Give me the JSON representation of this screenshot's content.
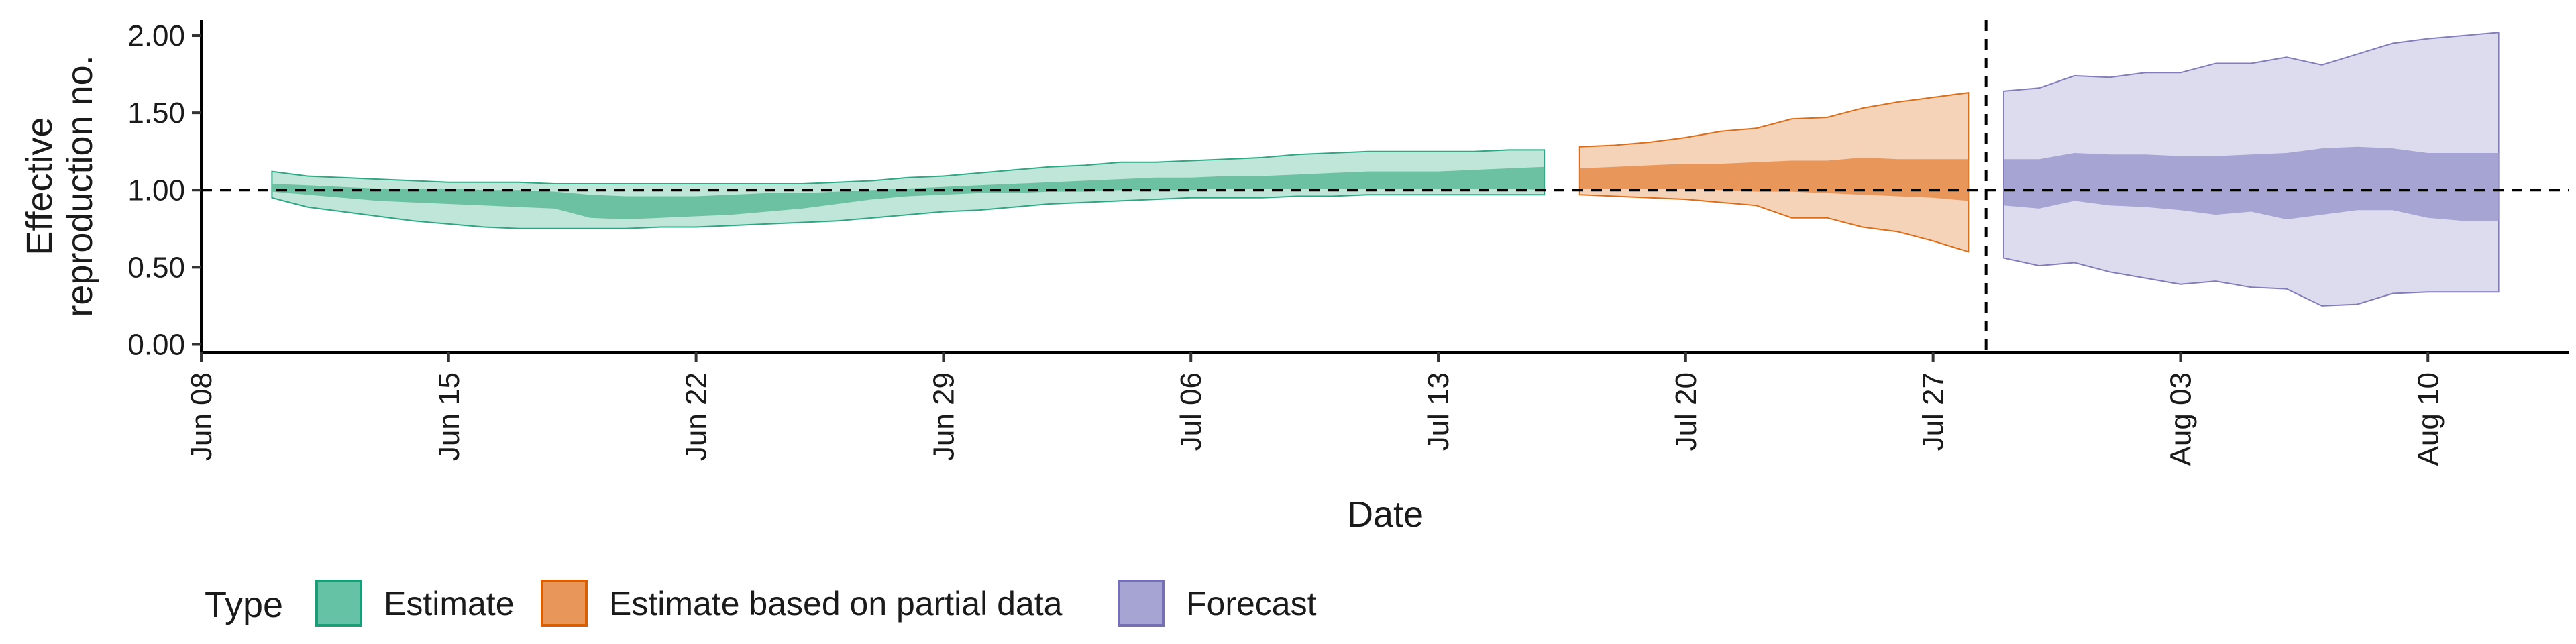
{
  "chart_data": {
    "type": "area",
    "xlabel": "Date",
    "ylabel_lines": [
      "Effective",
      "reproduction no."
    ],
    "ylim": [
      -0.05,
      2.1
    ],
    "xlim": [
      "2020-06-08",
      "2020-08-14"
    ],
    "y_ticks": [
      0.0,
      0.5,
      1.0,
      1.5,
      2.0
    ],
    "y_tick_labels": [
      "0.00",
      "0.50",
      "1.00",
      "1.50",
      "2.00"
    ],
    "x_ticks": [
      "2020-06-08",
      "2020-06-15",
      "2020-06-22",
      "2020-06-29",
      "2020-07-06",
      "2020-07-13",
      "2020-07-20",
      "2020-07-27",
      "2020-08-03",
      "2020-08-10"
    ],
    "x_tick_labels": [
      "Jun 08",
      "Jun 15",
      "Jun 22",
      "Jun 29",
      "Jul 06",
      "Jul 13",
      "Jul 20",
      "Jul 27",
      "Aug 03",
      "Aug 10"
    ],
    "hline_y": 1.0,
    "vline_x": "2020-07-28",
    "legend": {
      "title": "Type",
      "position": "bottom-left",
      "entries": [
        {
          "label": "Estimate",
          "fill": "#66c2a5",
          "stroke": "#1b9e77"
        },
        {
          "label": "Estimate based on partial data",
          "fill": "#e8965a",
          "stroke": "#d95f02"
        },
        {
          "label": "Forecast",
          "fill": "#a6a4d2",
          "stroke": "#7570b3"
        }
      ]
    },
    "series": [
      {
        "name": "Estimate",
        "color": "#1b9e77",
        "fill_outer": "#bfe6d8",
        "fill_inner": "#6cc1a2",
        "x": [
          "2020-06-10",
          "2020-06-11",
          "2020-06-12",
          "2020-06-13",
          "2020-06-14",
          "2020-06-15",
          "2020-06-16",
          "2020-06-17",
          "2020-06-18",
          "2020-06-19",
          "2020-06-20",
          "2020-06-21",
          "2020-06-22",
          "2020-06-23",
          "2020-06-24",
          "2020-06-25",
          "2020-06-26",
          "2020-06-27",
          "2020-06-28",
          "2020-06-29",
          "2020-06-30",
          "2020-07-01",
          "2020-07-02",
          "2020-07-03",
          "2020-07-04",
          "2020-07-05",
          "2020-07-06",
          "2020-07-07",
          "2020-07-08",
          "2020-07-09",
          "2020-07-10",
          "2020-07-11",
          "2020-07-12",
          "2020-07-13",
          "2020-07-14",
          "2020-07-15",
          "2020-07-16"
        ],
        "upper_90": [
          1.12,
          1.09,
          1.08,
          1.07,
          1.06,
          1.05,
          1.05,
          1.05,
          1.04,
          1.04,
          1.04,
          1.04,
          1.04,
          1.04,
          1.04,
          1.04,
          1.05,
          1.06,
          1.08,
          1.09,
          1.11,
          1.13,
          1.15,
          1.16,
          1.18,
          1.18,
          1.19,
          1.2,
          1.21,
          1.23,
          1.24,
          1.25,
          1.25,
          1.25,
          1.25,
          1.26,
          1.26
        ],
        "lower_90": [
          0.95,
          0.89,
          0.86,
          0.83,
          0.8,
          0.78,
          0.76,
          0.75,
          0.75,
          0.75,
          0.75,
          0.76,
          0.76,
          0.77,
          0.78,
          0.79,
          0.8,
          0.82,
          0.84,
          0.86,
          0.87,
          0.89,
          0.91,
          0.92,
          0.93,
          0.94,
          0.95,
          0.95,
          0.95,
          0.96,
          0.96,
          0.97,
          0.97,
          0.97,
          0.97,
          0.97,
          0.97
        ],
        "upper_50": [
          1.04,
          1.03,
          1.02,
          1.01,
          1.01,
          1.01,
          1.0,
          1.0,
          0.99,
          0.97,
          0.96,
          0.96,
          0.96,
          0.97,
          0.98,
          0.98,
          0.99,
          1.0,
          1.01,
          1.02,
          1.03,
          1.04,
          1.05,
          1.06,
          1.07,
          1.08,
          1.08,
          1.09,
          1.09,
          1.1,
          1.11,
          1.12,
          1.12,
          1.12,
          1.13,
          1.14,
          1.15
        ],
        "lower_50": [
          0.99,
          0.97,
          0.95,
          0.93,
          0.92,
          0.91,
          0.9,
          0.89,
          0.88,
          0.82,
          0.81,
          0.82,
          0.83,
          0.84,
          0.86,
          0.88,
          0.91,
          0.94,
          0.96,
          0.97,
          0.98,
          0.98,
          0.99,
          0.99,
          1.0,
          1.0,
          1.0,
          1.01,
          1.01,
          1.01,
          1.01,
          1.01,
          1.01,
          1.01,
          1.01,
          1.01,
          1.0
        ]
      },
      {
        "name": "Estimate based on partial data",
        "color": "#d95f02",
        "fill_outer": "#f5d3b8",
        "fill_inner": "#e8965a",
        "x": [
          "2020-07-17",
          "2020-07-18",
          "2020-07-19",
          "2020-07-20",
          "2020-07-21",
          "2020-07-22",
          "2020-07-23",
          "2020-07-24",
          "2020-07-25",
          "2020-07-26",
          "2020-07-27",
          "2020-07-28"
        ],
        "upper_90": [
          1.28,
          1.29,
          1.31,
          1.34,
          1.38,
          1.4,
          1.46,
          1.47,
          1.53,
          1.57,
          1.6,
          1.63
        ],
        "lower_90": [
          0.97,
          0.96,
          0.95,
          0.94,
          0.92,
          0.9,
          0.82,
          0.82,
          0.76,
          0.73,
          0.67,
          0.6
        ],
        "upper_50": [
          1.14,
          1.15,
          1.16,
          1.17,
          1.17,
          1.18,
          1.19,
          1.19,
          1.21,
          1.2,
          1.2,
          1.2
        ],
        "lower_50": [
          1.01,
          1.01,
          1.01,
          1.01,
          1.0,
          0.99,
          0.99,
          0.98,
          0.97,
          0.96,
          0.95,
          0.93
        ]
      },
      {
        "name": "Forecast",
        "color": "#7570b3",
        "fill_outer": "#dddcee",
        "fill_inner": "#a6a4d2",
        "x": [
          "2020-07-29",
          "2020-07-30",
          "2020-07-31",
          "2020-08-01",
          "2020-08-02",
          "2020-08-03",
          "2020-08-04",
          "2020-08-05",
          "2020-08-06",
          "2020-08-07",
          "2020-08-08",
          "2020-08-09",
          "2020-08-10",
          "2020-08-11",
          "2020-08-12"
        ],
        "upper_90": [
          1.64,
          1.66,
          1.74,
          1.73,
          1.76,
          1.76,
          1.82,
          1.82,
          1.86,
          1.81,
          1.88,
          1.95,
          1.98,
          2.0,
          2.02
        ],
        "lower_90": [
          0.56,
          0.51,
          0.53,
          0.47,
          0.43,
          0.39,
          0.41,
          0.37,
          0.36,
          0.25,
          0.26,
          0.33,
          0.34,
          0.34,
          0.34
        ],
        "upper_50": [
          1.2,
          1.2,
          1.24,
          1.23,
          1.23,
          1.22,
          1.22,
          1.23,
          1.24,
          1.27,
          1.28,
          1.27,
          1.24,
          1.24,
          1.24
        ],
        "lower_50": [
          0.9,
          0.88,
          0.93,
          0.9,
          0.89,
          0.87,
          0.84,
          0.86,
          0.81,
          0.84,
          0.87,
          0.87,
          0.82,
          0.8,
          0.8
        ]
      }
    ]
  }
}
